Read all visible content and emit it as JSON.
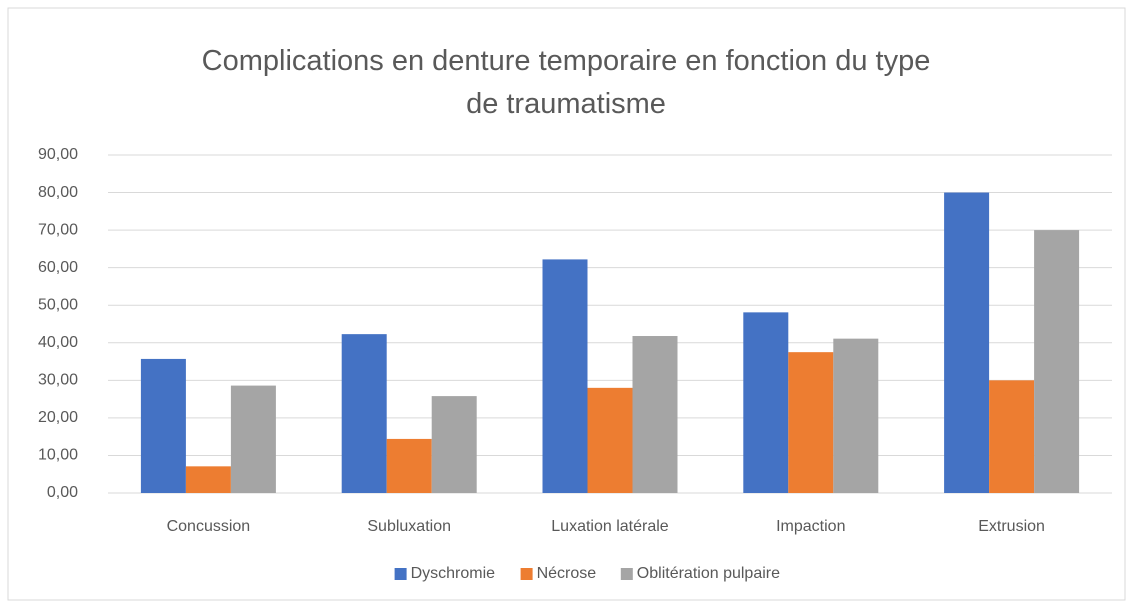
{
  "chart_data": {
    "type": "bar",
    "title": "Complications en denture temporaire en fonction du type de traumatisme",
    "categories": [
      "Concussion",
      "Subluxation",
      "Luxation latérale",
      "Impaction",
      "Extrusion"
    ],
    "series": [
      {
        "name": "Dyschromie",
        "color": "#4472c4",
        "values": [
          35.7,
          42.3,
          62.2,
          48.1,
          80.0
        ]
      },
      {
        "name": "Nécrose",
        "color": "#ed7d31",
        "values": [
          7.1,
          14.4,
          28.0,
          37.5,
          30.0
        ]
      },
      {
        "name": "Oblitération pulpaire",
        "color": "#a5a5a5",
        "values": [
          28.6,
          25.8,
          41.8,
          41.1,
          70.0
        ]
      }
    ],
    "ylim": [
      0,
      90
    ],
    "yticks": [
      {
        "value": 0,
        "label": "0,00"
      },
      {
        "value": 10,
        "label": "10,00"
      },
      {
        "value": 20,
        "label": "20,00"
      },
      {
        "value": 30,
        "label": "30,00"
      },
      {
        "value": 40,
        "label": "40,00"
      },
      {
        "value": 50,
        "label": "50,00"
      },
      {
        "value": 60,
        "label": "60,00"
      },
      {
        "value": 70,
        "label": "70,00"
      },
      {
        "value": 80,
        "label": "80,00"
      },
      {
        "value": 90,
        "label": "90,00"
      }
    ],
    "grid": true,
    "legend": "bottom"
  }
}
